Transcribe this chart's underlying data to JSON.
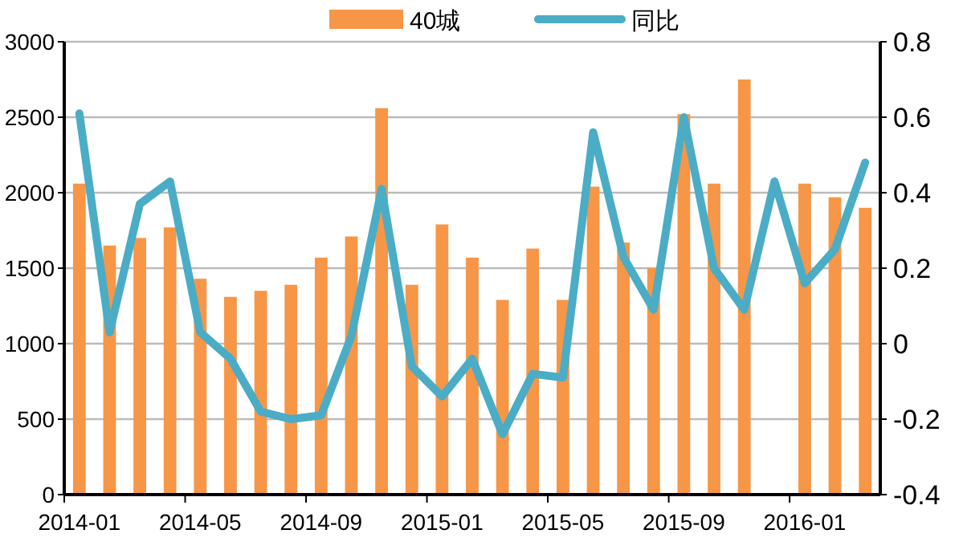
{
  "chart_data": {
    "type": "bar",
    "categories": [
      "2014-01",
      null,
      null,
      null,
      "2014-05",
      null,
      null,
      null,
      "2014-09",
      null,
      null,
      null,
      "2015-01",
      null,
      null,
      null,
      "2015-05",
      null,
      null,
      null,
      "2015-09",
      null,
      null,
      null,
      "2016-01",
      null,
      null
    ],
    "series": [
      {
        "name": "40城",
        "color": "#f79646",
        "values": [
          2060,
          1650,
          1700,
          1770,
          1430,
          1310,
          1350,
          1390,
          1570,
          1710,
          2560,
          1390,
          1790,
          1570,
          1290,
          1630,
          1290,
          2040,
          1670,
          1500,
          2520,
          2060,
          2750,
          null,
          2060,
          1970,
          1900
        ]
      },
      {
        "name": "同比",
        "type": "line",
        "axis": "y2",
        "color": "#4bacc6",
        "values": [
          0.61,
          0.03,
          0.37,
          0.43,
          0.03,
          -0.04,
          -0.18,
          -0.2,
          -0.19,
          0.02,
          0.41,
          -0.06,
          -0.14,
          -0.04,
          -0.24,
          -0.08,
          -0.09,
          0.56,
          0.23,
          0.09,
          0.6,
          0.2,
          0.09,
          0.43,
          0.16,
          0.25,
          0.48
        ]
      }
    ],
    "ylim": [
      0,
      3000
    ],
    "yticks": [
      0,
      500,
      1000,
      1500,
      2000,
      2500,
      3000
    ],
    "y2lim": [
      -0.4,
      0.8
    ],
    "y2ticks": [
      -0.4,
      -0.2,
      0,
      0.2,
      0.4,
      0.6,
      0.8
    ],
    "grid": "y",
    "legend": "top"
  }
}
